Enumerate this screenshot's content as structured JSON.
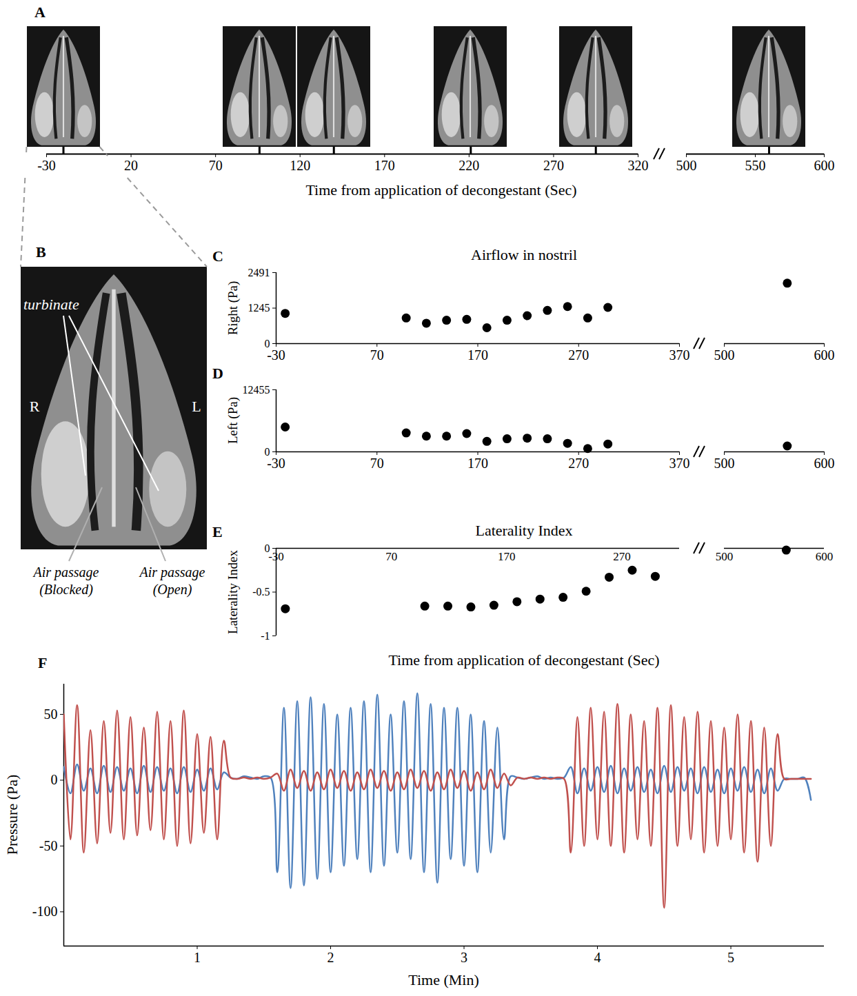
{
  "chart_data": [
    {
      "panel": "A",
      "type": "timeline",
      "x_label": "Time from application of decongestant (Sec)",
      "segments": [
        {
          "xlim": [
            -30,
            320
          ],
          "xticks": [
            -30,
            20,
            70,
            120,
            170,
            220,
            270,
            320
          ],
          "image_times": [
            -20,
            96,
            140,
            221,
            295
          ]
        },
        {
          "xlim": [
            500,
            600
          ],
          "xticks": [
            500,
            550,
            600
          ],
          "image_times": [
            560
          ]
        }
      ]
    },
    {
      "panel": "B",
      "type": "image",
      "labels": {
        "turbinate": "turbinate",
        "right": "R",
        "left": "L",
        "blocked": "Air passage (Blocked)",
        "open": "Air passage (Open)"
      }
    },
    {
      "panel": "C",
      "type": "scatter",
      "title": "Airflow in nostril",
      "y_label": "Right (Pa)",
      "ylim": [
        0,
        2491
      ],
      "yticks": [
        0,
        1245,
        2491
      ],
      "color": "#000000",
      "marker": "circle",
      "segments": [
        {
          "xlim": [
            -30,
            370
          ],
          "xticks": [
            -30,
            70,
            170,
            270,
            370
          ],
          "x": [
            -21,
            99,
            119,
            139,
            159,
            179,
            199,
            219,
            239,
            259,
            279,
            299
          ],
          "values": [
            1060,
            900,
            715,
            820,
            850,
            556,
            820,
            980,
            1165,
            1300,
            900,
            1270
          ]
        },
        {
          "xlim": [
            500,
            600
          ],
          "xticks": [
            500,
            600
          ],
          "x": [
            563
          ],
          "values": [
            2120
          ]
        }
      ]
    },
    {
      "panel": "D",
      "type": "scatter",
      "y_label": "Left (Pa)",
      "ylim": [
        0,
        12455
      ],
      "yticks": [
        0,
        12455
      ],
      "color": "#000000",
      "marker": "circle",
      "segments": [
        {
          "xlim": [
            -30,
            370
          ],
          "xticks": [
            -30,
            70,
            170,
            270,
            370
          ],
          "x": [
            -21,
            99,
            119,
            139,
            159,
            179,
            199,
            219,
            239,
            259,
            279,
            299
          ],
          "values": [
            4980,
            3800,
            3150,
            3150,
            3670,
            2100,
            2620,
            2750,
            2620,
            1700,
            655,
            1570
          ]
        },
        {
          "xlim": [
            500,
            600
          ],
          "xticks": [
            500,
            600
          ],
          "x": [
            563
          ],
          "values": [
            1180
          ]
        }
      ]
    },
    {
      "panel": "E",
      "type": "scatter",
      "title": "Laterality Index",
      "y_label": "Laterality Index",
      "x_label": "Time from application of decongestant (Sec)",
      "ylim": [
        -1,
        0
      ],
      "yticks": [
        0,
        -0.5,
        -1
      ],
      "color": "#000000",
      "marker": "circle",
      "segments": [
        {
          "xlim": [
            -30,
            320
          ],
          "xticks": [
            -30,
            70,
            170,
            270
          ],
          "x": [
            -22,
            99,
            119,
            139,
            159,
            179,
            199,
            219,
            239,
            259,
            279,
            299
          ],
          "values": [
            -0.69,
            -0.66,
            -0.66,
            -0.67,
            -0.65,
            -0.61,
            -0.58,
            -0.56,
            -0.49,
            -0.33,
            -0.25,
            -0.32
          ]
        },
        {
          "xlim": [
            500,
            600
          ],
          "xticks": [
            500,
            600
          ],
          "x": [
            562
          ],
          "values": [
            -0.02
          ]
        }
      ]
    },
    {
      "panel": "F",
      "type": "line",
      "x_label": "Time (Min)",
      "y_label": "Pressure (Pa)",
      "xlim": [
        0,
        5.7
      ],
      "xticks": [
        1,
        2,
        3,
        4,
        5
      ],
      "ylim": [
        -126,
        73
      ],
      "yticks": [
        -100,
        -50,
        0,
        50
      ],
      "x": [
        0,
        0.05,
        0.1,
        0.15,
        0.2,
        0.25,
        0.3,
        0.35,
        0.4,
        0.45,
        0.5,
        0.55,
        0.6,
        0.65,
        0.7,
        0.75,
        0.8,
        0.85,
        0.9,
        0.95,
        1,
        1.05,
        1.1,
        1.15,
        1.2,
        1.25,
        1.3,
        1.35,
        1.4,
        1.45,
        1.5,
        1.55,
        1.6,
        1.65,
        1.7,
        1.75,
        1.8,
        1.85,
        1.9,
        1.95,
        2,
        2.05,
        2.1,
        2.15,
        2.2,
        2.25,
        2.3,
        2.35,
        2.4,
        2.45,
        2.5,
        2.55,
        2.6,
        2.65,
        2.7,
        2.75,
        2.8,
        2.85,
        2.9,
        2.95,
        3,
        3.05,
        3.1,
        3.15,
        3.2,
        3.25,
        3.3,
        3.35,
        3.4,
        3.45,
        3.5,
        3.55,
        3.6,
        3.65,
        3.7,
        3.75,
        3.8,
        3.85,
        3.9,
        3.95,
        4,
        4.05,
        4.1,
        4.15,
        4.2,
        4.25,
        4.3,
        4.35,
        4.4,
        4.45,
        4.5,
        4.55,
        4.6,
        4.65,
        4.7,
        4.75,
        4.8,
        4.85,
        4.9,
        4.95,
        5,
        5.05,
        5.1,
        5.15,
        5.2,
        5.25,
        5.3,
        5.35,
        5.4,
        5.45,
        5.5,
        5.55,
        5.6
      ],
      "series": [
        {
          "color": "#4f81bd",
          "values": [
            10,
            -10,
            12,
            -8,
            9,
            -10,
            11,
            -9,
            10,
            -8,
            9,
            -10,
            11,
            -9,
            10,
            -8,
            9,
            -10,
            10,
            -9,
            8,
            -8,
            9,
            -7,
            6,
            2,
            1,
            3,
            2,
            1,
            3,
            2,
            -70,
            55,
            -82,
            60,
            -80,
            63,
            -75,
            58,
            -70,
            50,
            -65,
            55,
            -60,
            60,
            -70,
            65,
            -65,
            50,
            -55,
            60,
            -60,
            66,
            -70,
            58,
            -78,
            55,
            -60,
            55,
            -65,
            50,
            -70,
            45,
            -55,
            40,
            -45,
            3,
            2,
            1,
            2,
            3,
            1,
            2,
            1,
            2,
            10,
            -10,
            9,
            -8,
            10,
            -9,
            11,
            -10,
            9,
            -8,
            10,
            -9,
            8,
            -10,
            11,
            -9,
            10,
            -8,
            9,
            -10,
            10,
            -9,
            8,
            -10,
            9,
            -8,
            10,
            -9,
            8,
            -10,
            9,
            -8,
            1,
            1,
            1,
            2,
            -15
          ]
        },
        {
          "color": "#c0504d",
          "values": [
            50,
            -45,
            57,
            -55,
            38,
            -48,
            45,
            -40,
            53,
            -45,
            48,
            -42,
            40,
            -38,
            52,
            -45,
            45,
            -50,
            53,
            -48,
            35,
            -40,
            33,
            -45,
            30,
            2,
            1,
            2,
            1,
            2,
            1,
            2,
            5,
            -8,
            8,
            -6,
            7,
            -8,
            6,
            -7,
            8,
            -6,
            7,
            -8,
            6,
            -7,
            8,
            -6,
            7,
            -8,
            6,
            -7,
            8,
            -6,
            7,
            -8,
            6,
            -7,
            8,
            -6,
            7,
            -8,
            6,
            -7,
            8,
            -6,
            5,
            -4,
            2,
            1,
            2,
            1,
            2,
            1,
            2,
            1,
            -55,
            48,
            -50,
            55,
            -45,
            52,
            -50,
            58,
            -55,
            50,
            -45,
            45,
            -50,
            55,
            -97,
            57,
            -50,
            48,
            -45,
            52,
            -55,
            45,
            -50,
            40,
            -45,
            50,
            -55,
            45,
            -62,
            40,
            -50,
            35,
            1,
            1,
            1,
            1,
            1
          ]
        }
      ]
    }
  ]
}
